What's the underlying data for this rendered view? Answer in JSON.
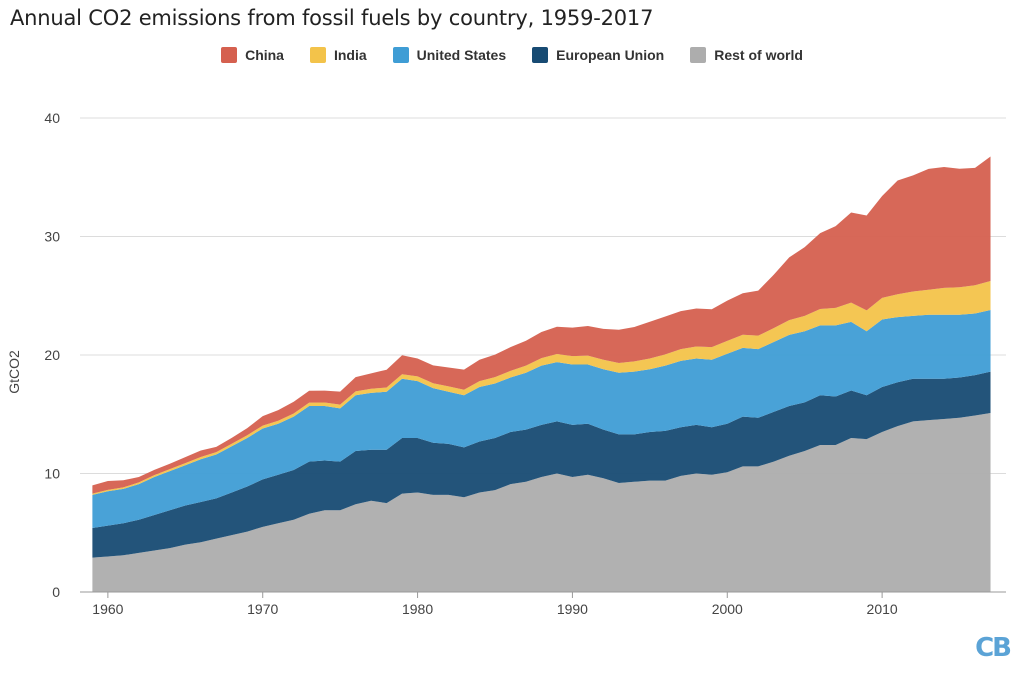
{
  "chart_data": {
    "type": "area",
    "title": "Annual CO2 emissions from fossil fuels by country, 1959-2017",
    "xlabel": "",
    "ylabel": "GtCO2",
    "ylim": [
      0,
      40
    ],
    "yticks": [
      0,
      10,
      20,
      30,
      40
    ],
    "xticks": [
      1960,
      1970,
      1980,
      1990,
      2000,
      2010
    ],
    "xlim": [
      1959,
      2017
    ],
    "x": [
      1959,
      1960,
      1961,
      1962,
      1963,
      1964,
      1965,
      1966,
      1967,
      1968,
      1969,
      1970,
      1971,
      1972,
      1973,
      1974,
      1975,
      1976,
      1977,
      1978,
      1979,
      1980,
      1981,
      1982,
      1983,
      1984,
      1985,
      1986,
      1987,
      1988,
      1989,
      1990,
      1991,
      1992,
      1993,
      1994,
      1995,
      1996,
      1997,
      1998,
      1999,
      2000,
      2001,
      2002,
      2003,
      2004,
      2005,
      2006,
      2007,
      2008,
      2009,
      2010,
      2011,
      2012,
      2013,
      2014,
      2015,
      2016,
      2017
    ],
    "series": [
      {
        "name": "Rest of world",
        "color": "#adadad",
        "values": [
          2.9,
          3.0,
          3.1,
          3.3,
          3.5,
          3.7,
          4.0,
          4.2,
          4.5,
          4.8,
          5.1,
          5.5,
          5.8,
          6.1,
          6.6,
          6.9,
          6.9,
          7.4,
          7.7,
          7.5,
          8.3,
          8.4,
          8.2,
          8.2,
          8.0,
          8.4,
          8.6,
          9.1,
          9.3,
          9.7,
          10.0,
          9.7,
          9.9,
          9.6,
          9.2,
          9.3,
          9.4,
          9.4,
          9.8,
          10.0,
          9.9,
          10.1,
          10.6,
          10.6,
          11.0,
          11.5,
          11.9,
          12.4,
          12.4,
          13.0,
          12.9,
          13.5,
          14.0,
          14.4,
          14.5,
          14.6,
          14.7,
          14.9,
          15.1
        ]
      },
      {
        "name": "European Union",
        "color": "#174b73",
        "values": [
          2.5,
          2.6,
          2.7,
          2.8,
          3.0,
          3.2,
          3.3,
          3.4,
          3.4,
          3.6,
          3.8,
          4.0,
          4.1,
          4.2,
          4.4,
          4.2,
          4.1,
          4.5,
          4.3,
          4.5,
          4.7,
          4.6,
          4.4,
          4.3,
          4.2,
          4.3,
          4.4,
          4.4,
          4.4,
          4.4,
          4.4,
          4.4,
          4.3,
          4.1,
          4.1,
          4.0,
          4.1,
          4.2,
          4.1,
          4.1,
          4.0,
          4.1,
          4.2,
          4.1,
          4.2,
          4.2,
          4.1,
          4.2,
          4.1,
          4.0,
          3.7,
          3.8,
          3.7,
          3.6,
          3.5,
          3.4,
          3.4,
          3.4,
          3.5
        ]
      },
      {
        "name": "United States",
        "color": "#3f9dd5",
        "values": [
          2.8,
          2.9,
          2.9,
          3.0,
          3.2,
          3.3,
          3.4,
          3.6,
          3.7,
          3.9,
          4.1,
          4.3,
          4.3,
          4.5,
          4.7,
          4.6,
          4.5,
          4.7,
          4.8,
          4.9,
          5.0,
          4.8,
          4.6,
          4.4,
          4.4,
          4.6,
          4.6,
          4.6,
          4.8,
          5.0,
          5.0,
          5.1,
          5.0,
          5.1,
          5.2,
          5.3,
          5.3,
          5.5,
          5.6,
          5.6,
          5.7,
          5.9,
          5.8,
          5.8,
          5.9,
          6.0,
          6.0,
          5.9,
          6.0,
          5.8,
          5.4,
          5.7,
          5.5,
          5.3,
          5.4,
          5.4,
          5.3,
          5.2,
          5.2
        ]
      },
      {
        "name": "India",
        "color": "#f3c34a",
        "values": [
          0.1,
          0.12,
          0.13,
          0.15,
          0.16,
          0.17,
          0.18,
          0.19,
          0.2,
          0.21,
          0.23,
          0.24,
          0.25,
          0.26,
          0.28,
          0.29,
          0.31,
          0.33,
          0.35,
          0.36,
          0.38,
          0.4,
          0.42,
          0.45,
          0.47,
          0.5,
          0.53,
          0.56,
          0.6,
          0.64,
          0.68,
          0.71,
          0.75,
          0.8,
          0.83,
          0.86,
          0.91,
          0.95,
          1.0,
          1.02,
          1.06,
          1.09,
          1.11,
          1.13,
          1.17,
          1.24,
          1.3,
          1.38,
          1.48,
          1.62,
          1.77,
          1.82,
          1.93,
          2.06,
          2.11,
          2.26,
          2.32,
          2.39,
          2.45
        ]
      },
      {
        "name": "China",
        "color": "#d5604f",
        "values": [
          0.7,
          0.75,
          0.6,
          0.45,
          0.45,
          0.45,
          0.5,
          0.55,
          0.45,
          0.5,
          0.6,
          0.8,
          0.9,
          1.0,
          1.0,
          1.0,
          1.1,
          1.2,
          1.3,
          1.5,
          1.6,
          1.5,
          1.5,
          1.6,
          1.7,
          1.8,
          1.9,
          2.0,
          2.1,
          2.2,
          2.3,
          2.4,
          2.5,
          2.6,
          2.8,
          2.9,
          3.1,
          3.2,
          3.2,
          3.2,
          3.2,
          3.4,
          3.5,
          3.8,
          4.5,
          5.3,
          5.8,
          6.4,
          6.9,
          7.6,
          8.0,
          8.6,
          9.6,
          9.8,
          10.2,
          10.2,
          10.0,
          9.9,
          10.5
        ]
      }
    ],
    "legend": [
      "China",
      "India",
      "United States",
      "European Union",
      "Rest of world"
    ],
    "legend_position": "top-center",
    "source_logo": "CB"
  }
}
